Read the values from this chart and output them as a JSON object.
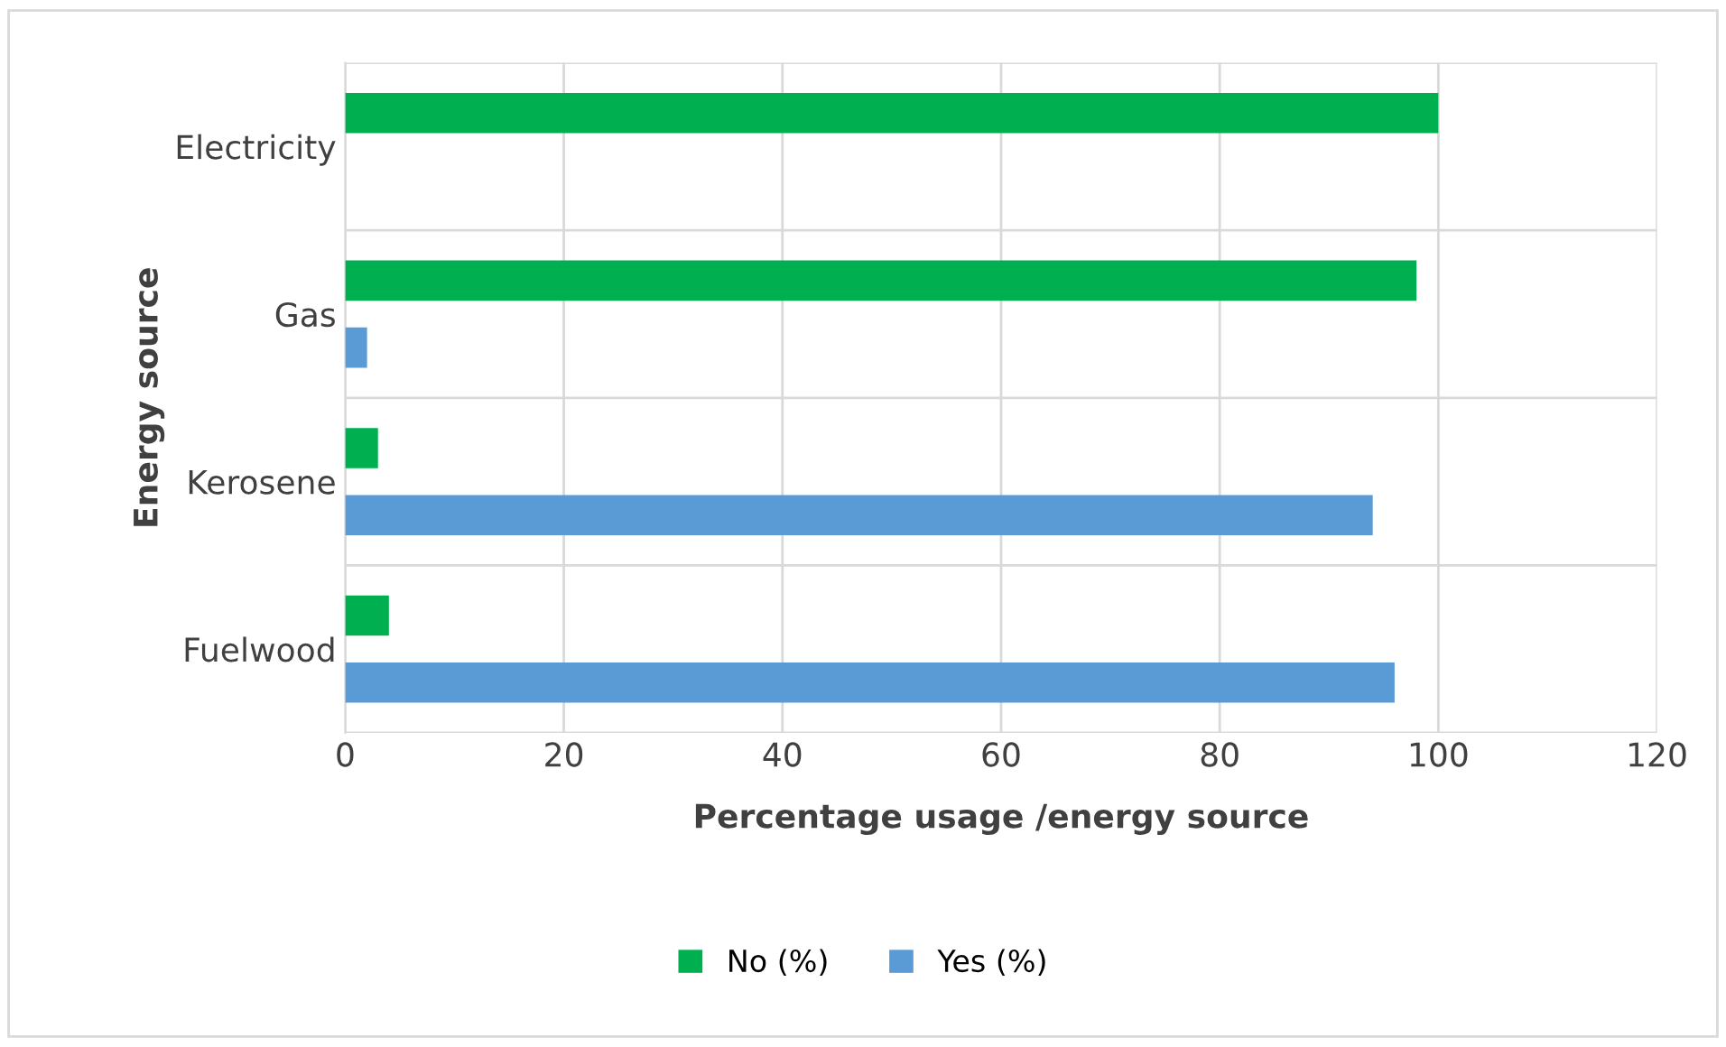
{
  "chart_data": {
    "type": "bar",
    "orientation": "horizontal",
    "xlabel": "Percentage usage /energy source",
    "ylabel": "Energy source",
    "categories": [
      "Electricity",
      "Gas",
      "Kerosene",
      "Fuelwood"
    ],
    "series": [
      {
        "name": "No (%)",
        "color": "#00b050",
        "values": [
          100,
          98,
          3,
          4
        ]
      },
      {
        "name": "Yes (%)",
        "color": "#5b9bd5",
        "values": [
          0,
          2,
          94,
          96
        ]
      }
    ],
    "xlim": [
      0,
      120
    ],
    "xticks": [
      0,
      20,
      40,
      60,
      80,
      100,
      120
    ],
    "grid": true,
    "legend": "bottom"
  }
}
